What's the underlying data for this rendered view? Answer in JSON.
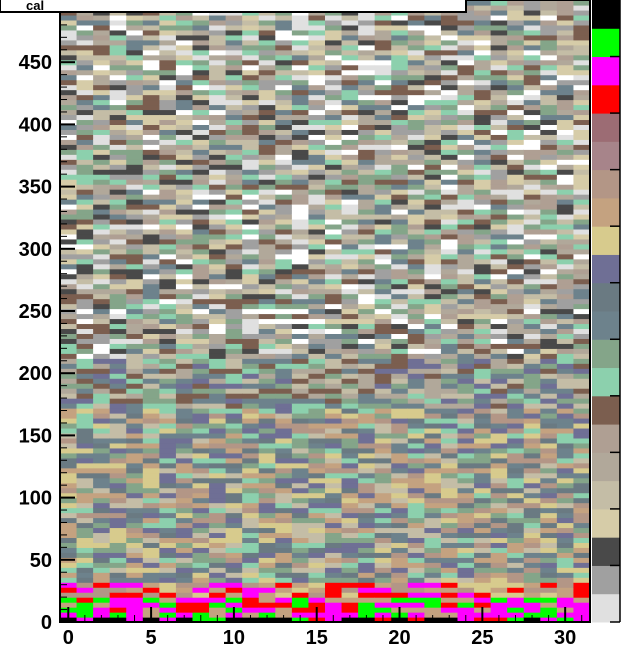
{
  "chart_data": {
    "type": "heatmap",
    "title": "cal",
    "xlabel": "",
    "ylabel": "",
    "xlim": [
      -0.5,
      31.5
    ],
    "ylim": [
      0,
      500
    ],
    "x_bins": 32,
    "y_bins": 500,
    "x_ticks": [
      0,
      5,
      10,
      15,
      20,
      25,
      30
    ],
    "y_ticks": [
      0,
      50,
      100,
      150,
      200,
      250,
      300,
      350,
      400,
      450
    ],
    "palette": [
      "#e0e0e0",
      "#a0a0a0",
      "#494949",
      "#d6cca8",
      "#c4bda6",
      "#b1a89a",
      "#af9f93",
      "#7b5e4f",
      "#8cd0ad",
      "#84a589",
      "#6d828c",
      "#6a7a82",
      "#6f6f95",
      "#d7cb8d",
      "#c4a280",
      "#b39686",
      "#a7848a",
      "#9c6c74",
      "#ff0000",
      "#ff00ff",
      "#00ff00",
      "#000000"
    ],
    "zones": [
      {
        "from": 0,
        "to": 4,
        "colors": [
          "#000000",
          "#00ff00",
          "#ff00ff",
          "#000000",
          "#ff0000"
        ]
      },
      {
        "from": 4,
        "to": 18,
        "colors": [
          "#ff00ff",
          "#ff00ff",
          "#ff0000",
          "#00ff00",
          "#c4a280"
        ]
      },
      {
        "from": 18,
        "to": 32,
        "colors": [
          "#ff0000",
          "#c4a280",
          "#d7cb8d",
          "#b39686",
          "#ff00ff"
        ]
      },
      {
        "from": 32,
        "to": 170,
        "colors": [
          "#6f6f95",
          "#6a7a82",
          "#84a589",
          "#d7cb8d",
          "#c4bda6",
          "#6d828c",
          "#8cd0ad",
          "#c4a280",
          "#b39686"
        ]
      },
      {
        "from": 170,
        "to": 210,
        "colors": [
          "#84a589",
          "#8cd0ad",
          "#6d828c",
          "#6f6f95",
          "#b1a89a",
          "#c4bda6",
          "#7b5e4f"
        ]
      },
      {
        "from": 210,
        "to": 500,
        "colors": [
          "#c4bda6",
          "#b1a89a",
          "#af9f93",
          "#7b5e4f",
          "#8cd0ad",
          "#494949",
          "#ffffff",
          "#d6cca8",
          "#a0a0a0",
          "#e0e0e0",
          "#6d828c",
          "#84a589"
        ]
      }
    ]
  }
}
